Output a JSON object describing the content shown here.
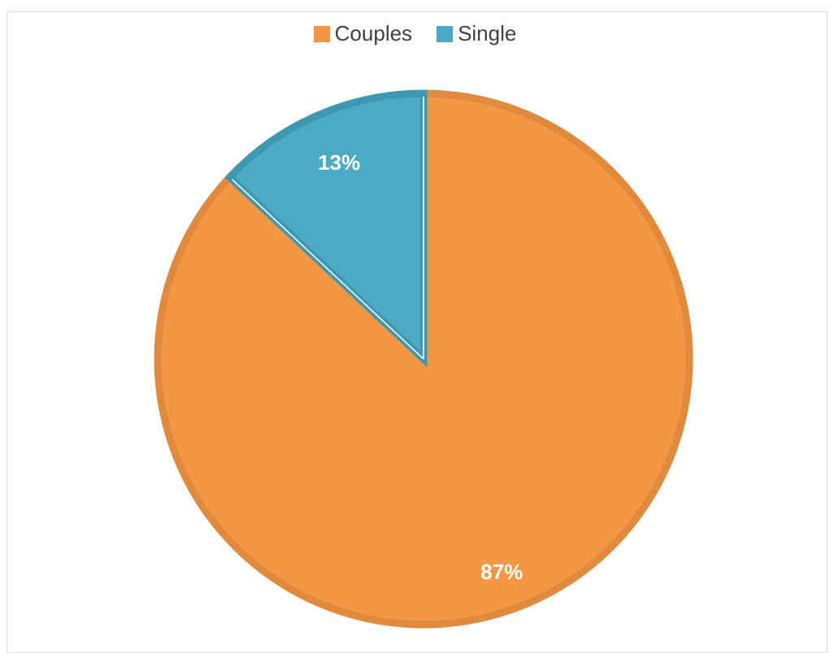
{
  "chart_data": {
    "type": "pie",
    "title": "",
    "legend_position": "top",
    "categories": [
      "Couples",
      "Single"
    ],
    "values": [
      87,
      13
    ],
    "data_labels": [
      "87%",
      "13%"
    ],
    "colors": {
      "Couples": {
        "fill": "#f39744",
        "border": "#e08a3e"
      },
      "Single": {
        "fill": "#4babc5",
        "border": "#3e98b2"
      }
    },
    "start_angle_deg": 0,
    "direction": "clockwise"
  }
}
